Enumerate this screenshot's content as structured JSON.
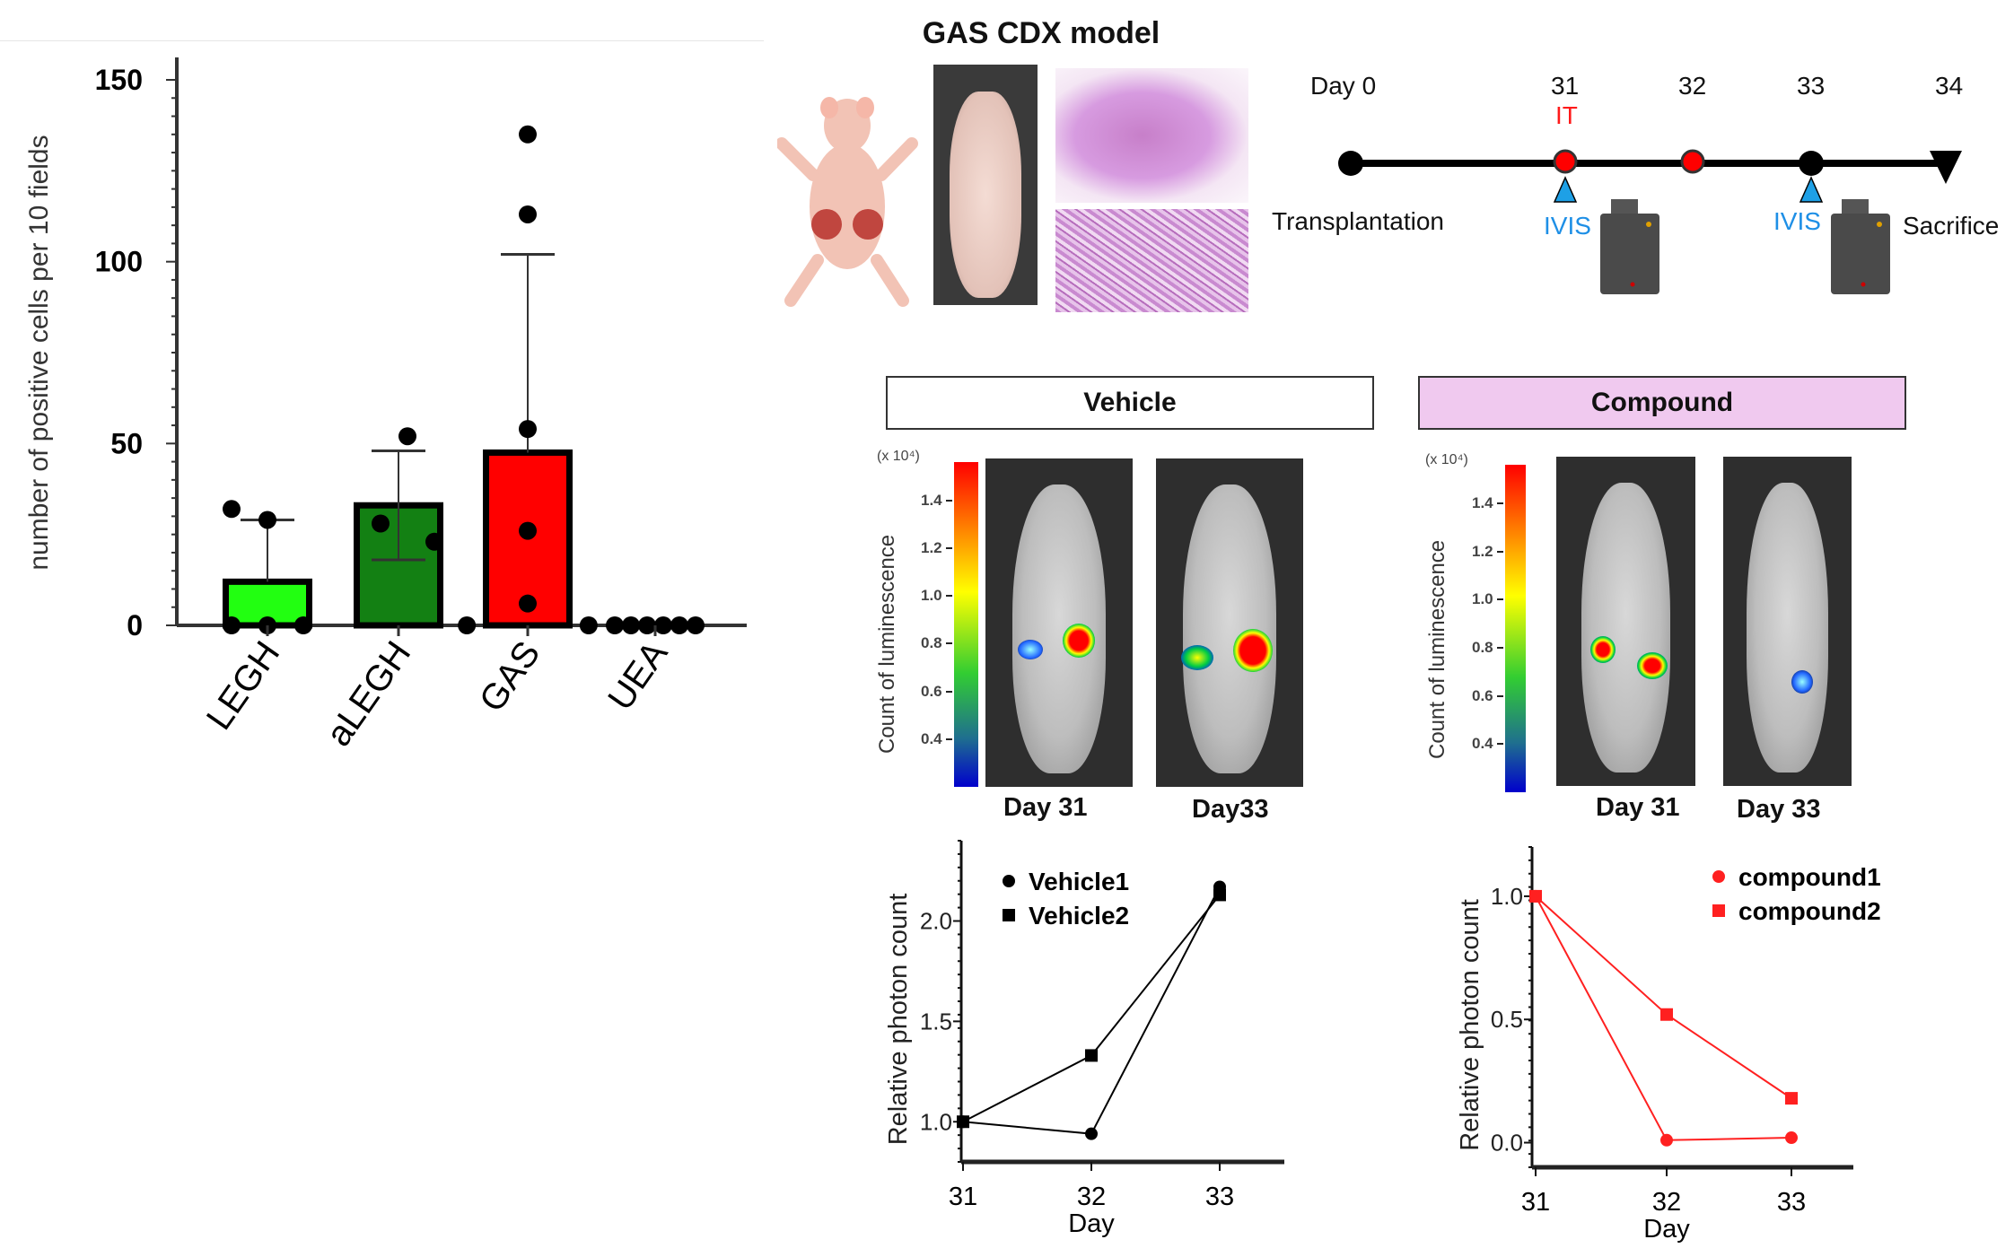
{
  "figure_title": "GAS CDX model",
  "timeline": {
    "days": [
      "Day 0",
      "31",
      "32",
      "33",
      "34"
    ],
    "treatment_label": "IT",
    "imaging_label": "IVIS",
    "start_label": "Transplantation",
    "end_label": "Sacrifice",
    "colors": {
      "treatment": "#ff0000",
      "imaging": "#1ea0e6",
      "line": "#000000"
    }
  },
  "panels": {
    "vehicle": {
      "label": "Vehicle",
      "fill": "#f0f0f0",
      "colorbar_unit": "(x 10⁴)",
      "colorbar_label": "Count of luminescence",
      "colorbar_ticks": [
        "1.4",
        "1.2",
        "1.0",
        "0.8",
        "0.6",
        "0.4"
      ],
      "image_labels": [
        "Day 31",
        "Day33"
      ]
    },
    "compound": {
      "label": "Compound",
      "fill": "#f0c9ef",
      "colorbar_unit": "(x 10⁴)",
      "colorbar_label": "Count of luminescence",
      "colorbar_ticks": [
        "1.4",
        "1.2",
        "1.0",
        "0.8",
        "0.6",
        "0.4"
      ],
      "image_labels": [
        "Day 31",
        "Day 33"
      ]
    }
  },
  "chart_data": [
    {
      "type": "bar",
      "title": "",
      "xlabel": "",
      "ylabel": "number of positive cells per 10 fields",
      "ylim": [
        0,
        150
      ],
      "yticks": [
        "0",
        "50",
        "100",
        "150"
      ],
      "categories": [
        "LEGH",
        "aLEGH",
        "GAS",
        "UEA"
      ],
      "values": [
        12,
        33,
        47.5,
        0
      ],
      "error_upper": [
        29,
        48,
        102,
        0
      ],
      "error_lower": [
        12,
        18,
        47.5,
        0
      ],
      "colors": [
        "#22ff11",
        "#138013",
        "#ff0000",
        "#ffffff"
      ],
      "points": [
        [
          32,
          29,
          0,
          0,
          0
        ],
        [
          52,
          28,
          23
        ],
        [
          135,
          113,
          54,
          26,
          6,
          0,
          0
        ],
        [
          0,
          0,
          0,
          0,
          0,
          0
        ]
      ]
    },
    {
      "type": "line",
      "xlabel": "Day",
      "ylabel": "Relative photon count",
      "x": [
        31,
        32,
        33
      ],
      "xticks": [
        "31",
        "32",
        "33"
      ],
      "ylim": [
        0.8,
        2.4
      ],
      "yticks": [
        "1.0",
        "1.5",
        "2.0"
      ],
      "legend": "top-left",
      "series": [
        {
          "name": "Vehicle1",
          "marker": "circle",
          "color": "#000000",
          "values": [
            1.0,
            0.94,
            2.17
          ]
        },
        {
          "name": "Vehicle2",
          "marker": "square",
          "color": "#000000",
          "values": [
            1.0,
            1.33,
            2.13
          ]
        }
      ]
    },
    {
      "type": "line",
      "xlabel": "Day",
      "ylabel": "Relative photon count",
      "x": [
        31,
        32,
        33
      ],
      "xticks": [
        "31",
        "32",
        "33"
      ],
      "ylim": [
        -0.1,
        1.2
      ],
      "yticks": [
        "0.0",
        "0.5",
        "1.0"
      ],
      "legend": "top-right",
      "series": [
        {
          "name": "compound1",
          "marker": "circle",
          "color": "#ff2020",
          "values": [
            1.0,
            0.01,
            0.02
          ]
        },
        {
          "name": "compound2",
          "marker": "square",
          "color": "#ff2020",
          "values": [
            1.0,
            0.52,
            0.18
          ]
        }
      ]
    }
  ]
}
